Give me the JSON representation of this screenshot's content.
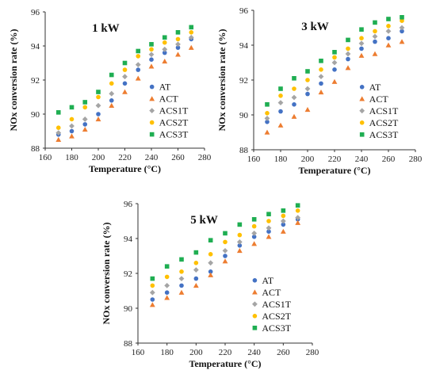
{
  "chart_data": [
    {
      "type": "scatter",
      "title": "1 kW",
      "xlabel": "Temperature (°C)",
      "ylabel": "NOx conversion rate (%)",
      "xlim": [
        160,
        280
      ],
      "ylim": [
        88,
        96
      ],
      "xticks": [
        160,
        180,
        200,
        220,
        240,
        260,
        280
      ],
      "yticks": [
        88,
        90,
        92,
        94,
        96
      ],
      "legend_position": "bottom-right",
      "grid": false,
      "x": [
        170,
        180,
        190,
        200,
        210,
        220,
        230,
        240,
        250,
        260,
        270
      ],
      "series": [
        {
          "name": "AT",
          "color": "#4472C4",
          "marker": "circle",
          "values": [
            88.8,
            89.0,
            89.4,
            90.0,
            90.8,
            91.8,
            92.6,
            93.2,
            93.6,
            93.9,
            94.4
          ]
        },
        {
          "name": "ACT",
          "color": "#ED7D31",
          "marker": "triangle",
          "values": [
            88.5,
            88.7,
            89.1,
            89.7,
            90.5,
            91.3,
            92.1,
            92.8,
            93.1,
            93.5,
            93.9
          ]
        },
        {
          "name": "ACS1T",
          "color": "#A5A5A5",
          "marker": "diamond",
          "values": [
            88.9,
            89.3,
            89.7,
            90.5,
            91.2,
            92.2,
            92.9,
            93.5,
            93.8,
            94.1,
            94.5
          ]
        },
        {
          "name": "ACS2T",
          "color": "#FFC000",
          "marker": "circle",
          "values": [
            89.2,
            89.7,
            90.4,
            91.0,
            91.8,
            92.6,
            93.4,
            93.8,
            94.2,
            94.4,
            94.8
          ]
        },
        {
          "name": "ACS3T",
          "color": "#1FAE52",
          "marker": "square",
          "values": [
            90.1,
            90.4,
            90.7,
            91.3,
            92.3,
            93.0,
            93.7,
            94.1,
            94.5,
            94.8,
            95.1
          ]
        }
      ]
    },
    {
      "type": "scatter",
      "title": "3 kW",
      "xlabel": "Temperature (°C)",
      "ylabel": "NOx conversion rate (%)",
      "xlim": [
        160,
        280
      ],
      "ylim": [
        88,
        96
      ],
      "xticks": [
        160,
        180,
        200,
        220,
        240,
        260,
        280
      ],
      "yticks": [
        88,
        90,
        92,
        94,
        96
      ],
      "legend_position": "bottom-right",
      "grid": false,
      "x": [
        170,
        180,
        190,
        200,
        210,
        220,
        230,
        240,
        250,
        260,
        270
      ],
      "series": [
        {
          "name": "AT",
          "color": "#4472C4",
          "marker": "circle",
          "values": [
            89.6,
            90.2,
            90.6,
            91.2,
            91.8,
            92.6,
            93.2,
            93.8,
            94.2,
            94.4,
            94.8
          ]
        },
        {
          "name": "ACT",
          "color": "#ED7D31",
          "marker": "triangle",
          "values": [
            89.0,
            89.4,
            89.9,
            90.3,
            91.3,
            91.9,
            92.7,
            93.4,
            93.5,
            94.0,
            94.2
          ]
        },
        {
          "name": "ACS1T",
          "color": "#A5A5A5",
          "marker": "diamond",
          "values": [
            89.8,
            90.7,
            91.0,
            91.5,
            92.2,
            93.0,
            93.5,
            94.1,
            94.5,
            94.8,
            95.0
          ]
        },
        {
          "name": "ACS2T",
          "color": "#FFC000",
          "marker": "circle",
          "values": [
            90.1,
            91.1,
            91.5,
            92.0,
            92.6,
            93.3,
            93.8,
            94.4,
            94.8,
            95.1,
            95.4
          ]
        },
        {
          "name": "ACS3T",
          "color": "#1FAE52",
          "marker": "square",
          "values": [
            90.6,
            91.5,
            92.1,
            92.5,
            93.1,
            93.6,
            94.3,
            94.9,
            95.3,
            95.5,
            95.6
          ]
        }
      ]
    },
    {
      "type": "scatter",
      "title": "5 kW",
      "xlabel": "Temperature (°C)",
      "ylabel": "NOx conversion rate (%)",
      "xlim": [
        160,
        280
      ],
      "ylim": [
        88,
        96
      ],
      "xticks": [
        160,
        180,
        200,
        220,
        240,
        260,
        280
      ],
      "yticks": [
        88,
        90,
        92,
        94,
        96
      ],
      "legend_position": "bottom-right",
      "grid": false,
      "x": [
        170,
        180,
        190,
        200,
        210,
        220,
        230,
        240,
        250,
        260,
        270
      ],
      "series": [
        {
          "name": "AT",
          "color": "#4472C4",
          "marker": "circle",
          "values": [
            90.5,
            90.9,
            91.3,
            91.7,
            92.1,
            93.0,
            93.6,
            94.1,
            94.4,
            94.8,
            95.1
          ]
        },
        {
          "name": "ACT",
          "color": "#ED7D31",
          "marker": "triangle",
          "values": [
            90.2,
            90.6,
            90.9,
            91.3,
            91.9,
            92.7,
            93.3,
            93.7,
            94.1,
            94.4,
            94.9
          ]
        },
        {
          "name": "ACS1T",
          "color": "#A5A5A5",
          "marker": "diamond",
          "values": [
            90.9,
            91.3,
            91.7,
            92.2,
            92.6,
            93.3,
            93.8,
            94.3,
            94.6,
            95.0,
            95.2
          ]
        },
        {
          "name": "ACS2T",
          "color": "#FFC000",
          "marker": "circle",
          "values": [
            91.3,
            91.8,
            92.1,
            92.6,
            93.1,
            93.8,
            94.2,
            94.7,
            95.0,
            95.3,
            95.6
          ]
        },
        {
          "name": "ACS3T",
          "color": "#1FAE52",
          "marker": "square",
          "values": [
            91.7,
            92.4,
            92.8,
            93.2,
            93.9,
            94.3,
            94.8,
            95.1,
            95.4,
            95.6,
            95.9
          ]
        }
      ]
    }
  ]
}
